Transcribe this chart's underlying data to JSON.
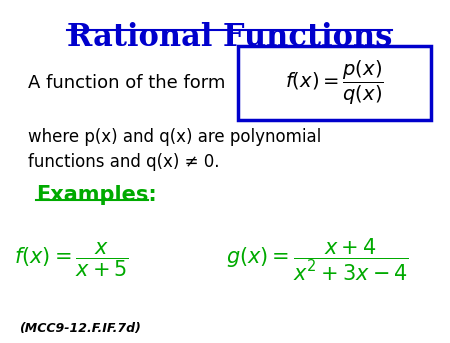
{
  "title": "Rational Functions",
  "title_color": "#0000CC",
  "title_fontsize": 22,
  "bg_color": "#FFFFFF",
  "text_color": "#000000",
  "green_color": "#00AA00",
  "blue_box_color": "#0000CC",
  "form_text": "A function of the form",
  "form_formula": "$f(x) = \\dfrac{p(x)}{q(x)}$",
  "description": "where p(x) and q(x) are polynomial\nfunctions and q(x) ≠ 0.",
  "examples_label": "Examples:",
  "example1": "$f(x) = \\dfrac{x}{x+5}$",
  "example2": "$g(x) = \\dfrac{x+4}{x^2+3x-4}$",
  "footnote": "(MCC9-12.F.IF.7d)"
}
